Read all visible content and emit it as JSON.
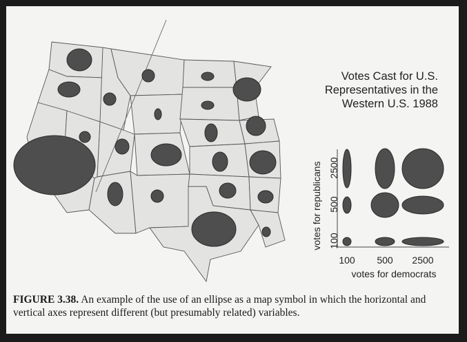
{
  "title": {
    "line1": "Votes Cast for U.S.",
    "line2": "Representatives in the",
    "line3": "Western U.S. 1988"
  },
  "legend": {
    "ylabel": "votes for republicans",
    "xlabel": "votes for democrats",
    "x_ticks": [
      "100",
      "500",
      "2500"
    ],
    "y_ticks": [
      "2500",
      "500",
      "100"
    ]
  },
  "caption": {
    "label": "FIGURE 3.38.",
    "text": "An example of the use of an ellipse as a map symbol in which the horizontal and vertical axes represent different (but presumably related) variables."
  },
  "colors": {
    "symbol_fill": "#4e4e4e",
    "state_fill": "#e3e3e1",
    "background": "#f4f4f2"
  }
}
